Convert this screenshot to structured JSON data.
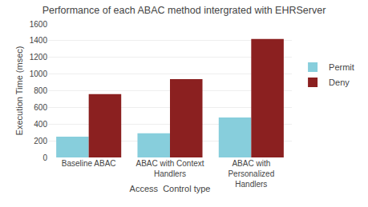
{
  "chart_data": {
    "type": "bar",
    "title": "Performance of each ABAC method intergrated with EHRServer",
    "xlabel": "Access  Control type",
    "ylabel": "Execution Time (msec)",
    "categories": [
      "Baseline ABAC",
      "ABAC with Context\nHandlers",
      "ABAC with\nPersonalized\nHandlers"
    ],
    "series": [
      {
        "name": "Permit",
        "color": "#87CEDC",
        "values": [
          250,
          290,
          480
        ]
      },
      {
        "name": "Deny",
        "color": "#8B2020",
        "values": [
          760,
          940,
          1420
        ]
      }
    ],
    "ylim": [
      0,
      1600
    ],
    "yticks": [
      0,
      200,
      400,
      600,
      800,
      1000,
      1200,
      1400,
      1600
    ],
    "grid": true,
    "legend": "right"
  }
}
